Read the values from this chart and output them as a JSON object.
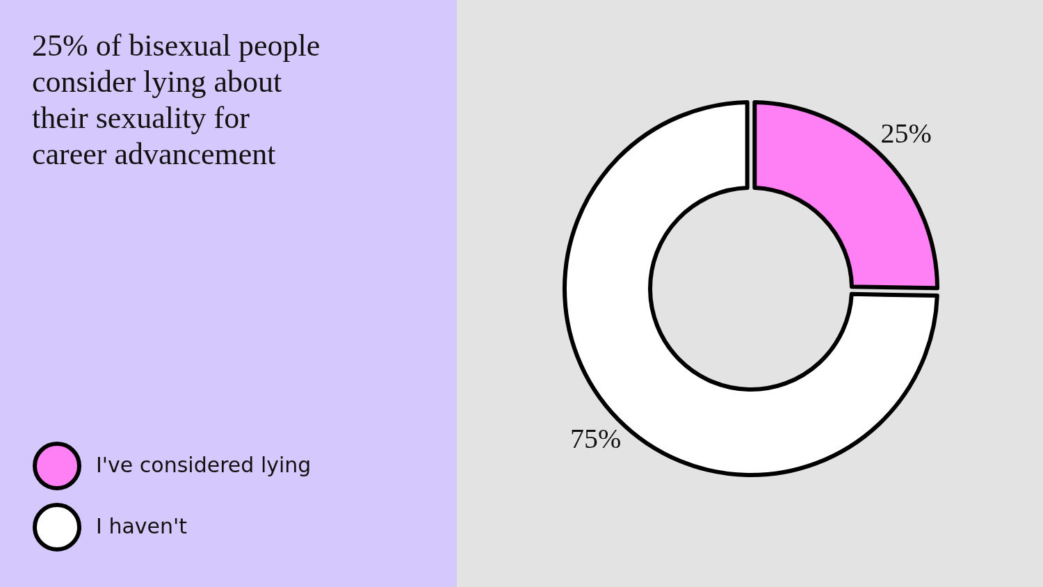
{
  "chart_data": {
    "type": "donut",
    "title": "25% of bisexual people consider lying about their sexuality for career advancement",
    "categories": [
      "I've considered lying",
      "I haven't"
    ],
    "values": [
      25,
      75
    ],
    "colors": [
      "#ff80f5",
      "#ffffff"
    ],
    "value_labels": [
      "25%",
      "75%"
    ],
    "legend": "bottom left"
  }
}
